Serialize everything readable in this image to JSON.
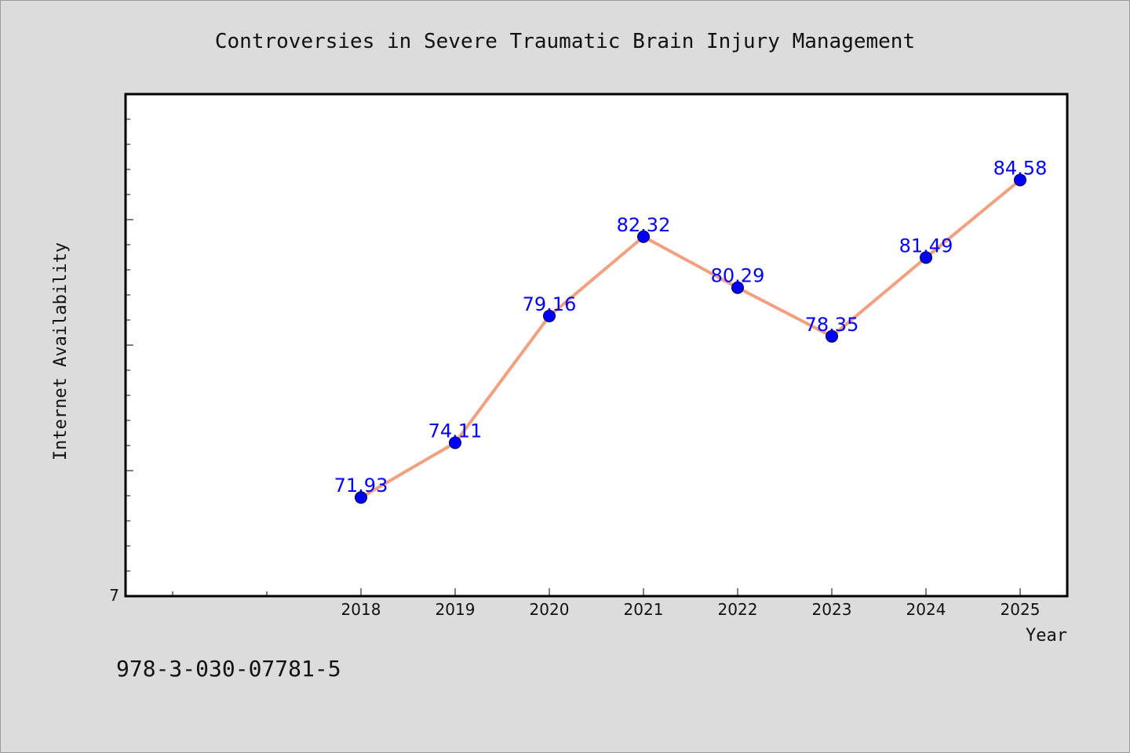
{
  "colors": {
    "background": "#dcdcdc",
    "plot_background": "#ffffff",
    "line": "#f4a07e",
    "marker": "#0000ff",
    "data_label": "#0000ff"
  },
  "isbn": "978-3-030-07781-5",
  "chart_data": {
    "type": "line",
    "title": "Controversies in Severe Traumatic Brain Injury Management",
    "xlabel": "Year",
    "ylabel": "Internet Availability",
    "x": [
      "2018",
      "2019",
      "2020",
      "2021",
      "2022",
      "2023",
      "2024",
      "2025"
    ],
    "values": [
      71.93,
      74.11,
      79.16,
      82.32,
      80.29,
      78.35,
      81.49,
      84.58
    ],
    "data_labels": [
      "71.93",
      "74.11",
      "79.16",
      "82.32",
      "80.29",
      "78.35",
      "81.49",
      "84.58"
    ],
    "y_tick_labels": [
      {
        "value": 68,
        "label": "7"
      }
    ],
    "ylim": [
      68,
      88
    ],
    "x_range": [
      -2.5,
      7.5
    ],
    "grid": false,
    "legend": "none"
  }
}
